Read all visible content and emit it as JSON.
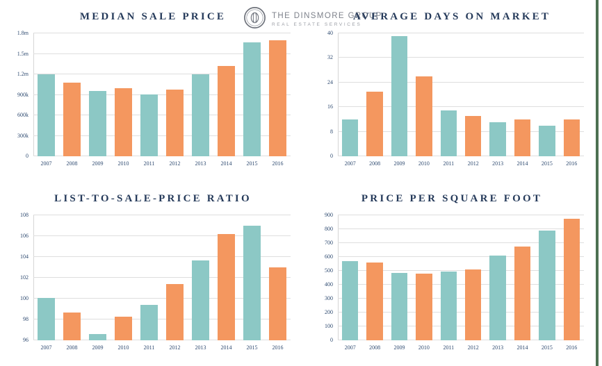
{
  "logo": {
    "name": "THE DINSMORE GROUP",
    "tagline": "REAL ESTATE SERVICES"
  },
  "colors": {
    "teal": "#8cc8c5",
    "orange": "#f4975f",
    "grid": "#dedede",
    "title_navy": "#253a5a",
    "tick_navy": "#2e4a70",
    "right_border_green": "#4d7052",
    "logo_gray": "#7e828b"
  },
  "chart_data": [
    {
      "type": "bar",
      "title": "MEDIAN SALE PRICE",
      "categories": [
        "2007",
        "2008",
        "2009",
        "2010",
        "2011",
        "2012",
        "2013",
        "2014",
        "2015",
        "2016"
      ],
      "values": [
        1200000,
        1080000,
        960000,
        1000000,
        910000,
        980000,
        1200000,
        1320000,
        1670000,
        1700000
      ],
      "ylim": [
        0,
        1800000
      ],
      "yticks": [
        {
          "value": 0,
          "label": "0"
        },
        {
          "value": 300000,
          "label": "300k"
        },
        {
          "value": 600000,
          "label": "600k"
        },
        {
          "value": 900000,
          "label": "900k"
        },
        {
          "value": 1200000,
          "label": "1.2m"
        },
        {
          "value": 1500000,
          "label": "1.5m"
        },
        {
          "value": 1800000,
          "label": "1.8m"
        }
      ],
      "grid": true,
      "legend": false,
      "bar_color_pattern": [
        "teal",
        "orange"
      ]
    },
    {
      "type": "bar",
      "title": "AVERAGE DAYS ON MARKET",
      "categories": [
        "2007",
        "2008",
        "2009",
        "2010",
        "2011",
        "2012",
        "2013",
        "2014",
        "2015",
        "2016"
      ],
      "values": [
        12,
        21,
        39,
        26,
        15,
        13,
        11,
        12,
        10,
        12
      ],
      "ylim": [
        0,
        40
      ],
      "yticks": [
        {
          "value": 0,
          "label": "0"
        },
        {
          "value": 8,
          "label": "8"
        },
        {
          "value": 16,
          "label": "16"
        },
        {
          "value": 24,
          "label": "24"
        },
        {
          "value": 32,
          "label": "32"
        },
        {
          "value": 40,
          "label": "40"
        }
      ],
      "grid": true,
      "legend": false,
      "bar_color_pattern": [
        "teal",
        "orange"
      ]
    },
    {
      "type": "bar",
      "title": "LIST-TO-SALE-PRICE RATIO",
      "categories": [
        "2007",
        "2008",
        "2009",
        "2010",
        "2011",
        "2012",
        "2013",
        "2014",
        "2015",
        "2016"
      ],
      "values": [
        100.1,
        98.7,
        96.6,
        98.3,
        99.4,
        101.4,
        103.7,
        106.2,
        107.0,
        103.0
      ],
      "ylim": [
        96,
        108
      ],
      "yticks": [
        {
          "value": 96,
          "label": "96"
        },
        {
          "value": 98,
          "label": "98"
        },
        {
          "value": 100,
          "label": "100"
        },
        {
          "value": 102,
          "label": "102"
        },
        {
          "value": 104,
          "label": "104"
        },
        {
          "value": 106,
          "label": "106"
        },
        {
          "value": 108,
          "label": "108"
        }
      ],
      "grid": true,
      "legend": false,
      "bar_color_pattern": [
        "teal",
        "orange"
      ]
    },
    {
      "type": "bar",
      "title": "PRICE PER SQUARE FOOT",
      "categories": [
        "2007",
        "2008",
        "2009",
        "2010",
        "2011",
        "2012",
        "2013",
        "2014",
        "2015",
        "2016"
      ],
      "values": [
        570,
        560,
        485,
        480,
        495,
        510,
        610,
        675,
        790,
        875
      ],
      "ylim": [
        0,
        900
      ],
      "yticks": [
        {
          "value": 0,
          "label": "0"
        },
        {
          "value": 100,
          "label": "100"
        },
        {
          "value": 200,
          "label": "200"
        },
        {
          "value": 300,
          "label": "300"
        },
        {
          "value": 400,
          "label": "400"
        },
        {
          "value": 500,
          "label": "500"
        },
        {
          "value": 600,
          "label": "600"
        },
        {
          "value": 700,
          "label": "700"
        },
        {
          "value": 800,
          "label": "800"
        },
        {
          "value": 900,
          "label": "900"
        }
      ],
      "grid": true,
      "legend": false,
      "bar_color_pattern": [
        "teal",
        "orange"
      ]
    }
  ]
}
